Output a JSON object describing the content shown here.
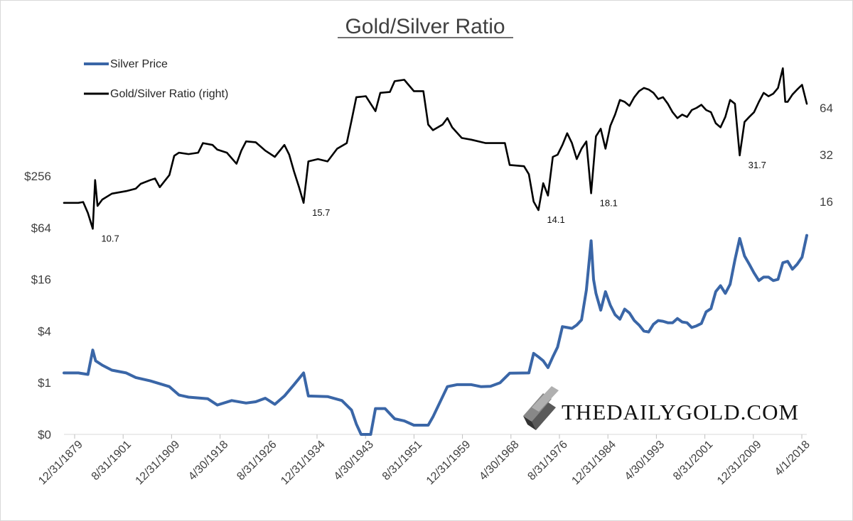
{
  "chart_data": {
    "type": "line",
    "title": "Gold/Silver Ratio",
    "watermark": "THEDAILYGOLD.COM",
    "legend_position": "top-left",
    "legend": [
      {
        "name": "Silver Price",
        "color": "#3a66a7"
      },
      {
        "name": "Gold/Silver Ratio (right)",
        "color": "#000000"
      }
    ],
    "x_tick_labels": [
      "12/31/1879",
      "8/31/1901",
      "12/31/1909",
      "4/30/1918",
      "8/31/1926",
      "12/31/1934",
      "4/30/1943",
      "8/31/1951",
      "12/31/1959",
      "4/30/1968",
      "8/31/1976",
      "12/31/1984",
      "4/30/1993",
      "8/31/2001",
      "12/31/2009",
      "4/1/2018"
    ],
    "x_range": [
      1870,
      2025
    ],
    "left_axis": {
      "scale": "log2",
      "range": [
        0.25,
        256
      ],
      "ticks": [
        {
          "value": 0.25,
          "label": "$0"
        },
        {
          "value": 1,
          "label": "$1"
        },
        {
          "value": 4,
          "label": "$4"
        },
        {
          "value": 16,
          "label": "$16"
        },
        {
          "value": 64,
          "label": "$64"
        },
        {
          "value": 256,
          "label": "$256"
        }
      ]
    },
    "right_axis": {
      "scale": "log2",
      "range": [
        4,
        128
      ],
      "ticks": [
        {
          "value": 16,
          "label": "16"
        },
        {
          "value": 32,
          "label": "32"
        },
        {
          "value": 64,
          "label": "64"
        }
      ]
    },
    "series": [
      {
        "name": "Silver Price",
        "axis": "left",
        "color": "#3a66a7",
        "points": [
          [
            1870,
            1.3
          ],
          [
            1873,
            1.3
          ],
          [
            1875,
            1.25
          ],
          [
            1876,
            2.4
          ],
          [
            1876.6,
            1.8
          ],
          [
            1878,
            1.6
          ],
          [
            1880,
            1.4
          ],
          [
            1883,
            1.3
          ],
          [
            1885,
            1.15
          ],
          [
            1888,
            1.05
          ],
          [
            1892,
            0.9
          ],
          [
            1894,
            0.72
          ],
          [
            1896,
            0.68
          ],
          [
            1900,
            0.65
          ],
          [
            1902,
            0.55
          ],
          [
            1905,
            0.62
          ],
          [
            1908,
            0.58
          ],
          [
            1910,
            0.6
          ],
          [
            1912,
            0.66
          ],
          [
            1914,
            0.56
          ],
          [
            1916,
            0.7
          ],
          [
            1918,
            0.95
          ],
          [
            1920,
            1.3
          ],
          [
            1921,
            0.7
          ],
          [
            1925,
            0.69
          ],
          [
            1928,
            0.62
          ],
          [
            1930,
            0.48
          ],
          [
            1931,
            0.33
          ],
          [
            1932,
            0.25
          ],
          [
            1934,
            0.25
          ],
          [
            1935,
            0.5
          ],
          [
            1937,
            0.5
          ],
          [
            1939,
            0.38
          ],
          [
            1941,
            0.36
          ],
          [
            1943,
            0.32
          ],
          [
            1946,
            0.32
          ],
          [
            1947,
            0.4
          ],
          [
            1950,
            0.9
          ],
          [
            1952,
            0.95
          ],
          [
            1955,
            0.95
          ],
          [
            1957,
            0.9
          ],
          [
            1959,
            0.91
          ],
          [
            1961,
            1.0
          ],
          [
            1963,
            1.29
          ],
          [
            1967,
            1.3
          ],
          [
            1968,
            2.2
          ],
          [
            1969,
            2.0
          ],
          [
            1970,
            1.8
          ],
          [
            1971,
            1.5
          ],
          [
            1972,
            2.0
          ],
          [
            1973,
            2.6
          ],
          [
            1974,
            4.5
          ],
          [
            1975,
            4.4
          ],
          [
            1976,
            4.3
          ],
          [
            1977,
            4.7
          ],
          [
            1978,
            5.4
          ],
          [
            1979,
            12.0
          ],
          [
            1980,
            45.0
          ],
          [
            1980.5,
            16.0
          ],
          [
            1981,
            11.0
          ],
          [
            1982,
            7.0
          ],
          [
            1983,
            11.5
          ],
          [
            1984,
            8.0
          ],
          [
            1985,
            6.2
          ],
          [
            1986,
            5.5
          ],
          [
            1987,
            7.2
          ],
          [
            1988,
            6.5
          ],
          [
            1989,
            5.3
          ],
          [
            1990,
            4.7
          ],
          [
            1991,
            4.0
          ],
          [
            1992,
            3.9
          ],
          [
            1993,
            4.8
          ],
          [
            1994,
            5.3
          ],
          [
            1995,
            5.2
          ],
          [
            1996,
            5.0
          ],
          [
            1997,
            5.0
          ],
          [
            1998,
            5.6
          ],
          [
            1999,
            5.1
          ],
          [
            2000,
            5.0
          ],
          [
            2001,
            4.4
          ],
          [
            2002,
            4.6
          ],
          [
            2003,
            4.9
          ],
          [
            2004,
            6.7
          ],
          [
            2005,
            7.3
          ],
          [
            2006,
            11.5
          ],
          [
            2007,
            13.5
          ],
          [
            2008,
            11.0
          ],
          [
            2009,
            14.0
          ],
          [
            2010,
            27.0
          ],
          [
            2011,
            48.0
          ],
          [
            2012,
            30.0
          ],
          [
            2013,
            24.0
          ],
          [
            2014,
            19.0
          ],
          [
            2015,
            15.5
          ],
          [
            2016,
            17.0
          ],
          [
            2017,
            17.0
          ],
          [
            2018,
            15.5
          ],
          [
            2019,
            16.0
          ],
          [
            2020,
            25.0
          ],
          [
            2021,
            26.0
          ],
          [
            2022,
            21.0
          ],
          [
            2023,
            24.0
          ],
          [
            2024,
            29.0
          ],
          [
            2025,
            52.0
          ]
        ]
      },
      {
        "name": "Gold/Silver Ratio (right)",
        "axis": "right",
        "color": "#000000",
        "points": [
          [
            1870,
            15.7
          ],
          [
            1873,
            15.7
          ],
          [
            1874,
            15.9
          ],
          [
            1875,
            13.5
          ],
          [
            1876,
            10.7
          ],
          [
            1876.5,
            22.0
          ],
          [
            1877,
            15.0
          ],
          [
            1878,
            16.5
          ],
          [
            1880,
            18.0
          ],
          [
            1883,
            18.7
          ],
          [
            1885,
            19.4
          ],
          [
            1886,
            20.8
          ],
          [
            1888,
            22.0
          ],
          [
            1889,
            22.5
          ],
          [
            1890,
            19.8
          ],
          [
            1892,
            23.7
          ],
          [
            1893,
            31.5
          ],
          [
            1894,
            33.0
          ],
          [
            1896,
            32.3
          ],
          [
            1898,
            33.0
          ],
          [
            1899,
            38.0
          ],
          [
            1901,
            37.0
          ],
          [
            1902,
            34.5
          ],
          [
            1904,
            33.0
          ],
          [
            1906,
            28.0
          ],
          [
            1907,
            34.0
          ],
          [
            1908,
            39.0
          ],
          [
            1910,
            38.5
          ],
          [
            1912,
            34.0
          ],
          [
            1914,
            31.0
          ],
          [
            1916,
            37.0
          ],
          [
            1917,
            32.0
          ],
          [
            1918,
            25.0
          ],
          [
            1919,
            20.0
          ],
          [
            1920,
            15.7
          ],
          [
            1921,
            29.0
          ],
          [
            1923,
            30.0
          ],
          [
            1925,
            29.0
          ],
          [
            1927,
            35.0
          ],
          [
            1929,
            38.0
          ],
          [
            1930,
            53.0
          ],
          [
            1931,
            75.0
          ],
          [
            1933,
            76.0
          ],
          [
            1934,
            68.0
          ],
          [
            1935,
            61.0
          ],
          [
            1936,
            80.0
          ],
          [
            1938,
            81.0
          ],
          [
            1939,
            95.0
          ],
          [
            1941,
            97.0
          ],
          [
            1943,
            82.0
          ],
          [
            1945,
            82.0
          ],
          [
            1946,
            50.0
          ],
          [
            1947,
            46.0
          ],
          [
            1949,
            50.0
          ],
          [
            1950,
            55.0
          ],
          [
            1951,
            48.0
          ],
          [
            1953,
            41.0
          ],
          [
            1955,
            40.0
          ],
          [
            1958,
            38.0
          ],
          [
            1962,
            38.0
          ],
          [
            1963,
            27.5
          ],
          [
            1966,
            27.0
          ],
          [
            1967,
            24.0
          ],
          [
            1968,
            16.0
          ],
          [
            1969,
            14.1
          ],
          [
            1970,
            21.0
          ],
          [
            1971,
            17.5
          ],
          [
            1972,
            31.0
          ],
          [
            1973,
            32.0
          ],
          [
            1974,
            37.0
          ],
          [
            1975,
            44.0
          ],
          [
            1976,
            38.0
          ],
          [
            1977,
            30.0
          ],
          [
            1978,
            35.0
          ],
          [
            1979,
            39.0
          ],
          [
            1980,
            18.1
          ],
          [
            1981,
            42.0
          ],
          [
            1982,
            47.0
          ],
          [
            1983,
            35.0
          ],
          [
            1984,
            49.0
          ],
          [
            1985,
            58.0
          ],
          [
            1986,
            72.0
          ],
          [
            1987,
            70.0
          ],
          [
            1988,
            66.0
          ],
          [
            1989,
            75.0
          ],
          [
            1990,
            82.0
          ],
          [
            1991,
            86.0
          ],
          [
            1992,
            84.0
          ],
          [
            1993,
            80.0
          ],
          [
            1994,
            73.0
          ],
          [
            1995,
            75.0
          ],
          [
            1996,
            68.0
          ],
          [
            1997,
            60.0
          ],
          [
            1998,
            55.0
          ],
          [
            1999,
            58.0
          ],
          [
            2000,
            56.0
          ],
          [
            2001,
            62.0
          ],
          [
            2002,
            64.0
          ],
          [
            2003,
            67.0
          ],
          [
            2004,
            62.0
          ],
          [
            2005,
            60.0
          ],
          [
            2006,
            51.0
          ],
          [
            2007,
            48.0
          ],
          [
            2008,
            56.0
          ],
          [
            2009,
            72.0
          ],
          [
            2010,
            68.0
          ],
          [
            2011,
            31.7
          ],
          [
            2012,
            52.0
          ],
          [
            2013,
            56.0
          ],
          [
            2014,
            60.0
          ],
          [
            2015,
            70.0
          ],
          [
            2016,
            80.0
          ],
          [
            2017,
            76.0
          ],
          [
            2018,
            79.0
          ],
          [
            2019,
            86.0
          ],
          [
            2020,
            115.0
          ],
          [
            2020.5,
            70.0
          ],
          [
            2021,
            70.0
          ],
          [
            2022,
            78.0
          ],
          [
            2023,
            84.0
          ],
          [
            2024,
            90.0
          ],
          [
            2025,
            68.0
          ]
        ]
      }
    ],
    "annotations": [
      {
        "label": "10.7",
        "x": 1876,
        "value": 10.7
      },
      {
        "label": "15.7",
        "x": 1920,
        "value": 15.7
      },
      {
        "label": "14.1",
        "x": 1969,
        "value": 14.1
      },
      {
        "label": "18.1",
        "x": 1980,
        "value": 18.1
      },
      {
        "label": "31.7",
        "x": 2011,
        "value": 31.7
      }
    ]
  }
}
